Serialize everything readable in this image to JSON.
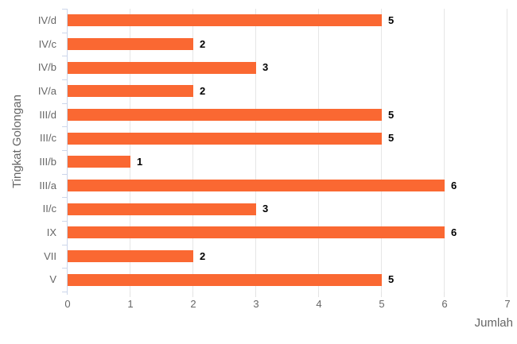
{
  "chart_data": {
    "type": "bar",
    "orientation": "horizontal",
    "title": "",
    "categories": [
      "IV/d",
      "IV/c",
      "IV/b",
      "IV/a",
      "III/d",
      "III/c",
      "III/b",
      "III/a",
      "II/c",
      "IX",
      "VII",
      "V"
    ],
    "values": [
      5,
      2,
      3,
      2,
      5,
      5,
      1,
      6,
      3,
      6,
      2,
      5
    ],
    "xlabel": "Jumlah",
    "ylabel": "Tingkat Golongan",
    "xlim": [
      0,
      7
    ],
    "xticks": [
      0,
      1,
      2,
      3,
      4,
      5,
      6,
      7
    ],
    "grid": true,
    "legend": false,
    "data_labels": true,
    "colors": {
      "bar": "#fa6832",
      "grid_line": "#e6e6e6",
      "category_axis_line": "#ccd6eb",
      "value_axis_tick": "#e3e3e3",
      "tick_label": "#666666",
      "axis_title": "#666666",
      "value_label": "#000000",
      "background": "#ffffff"
    }
  }
}
